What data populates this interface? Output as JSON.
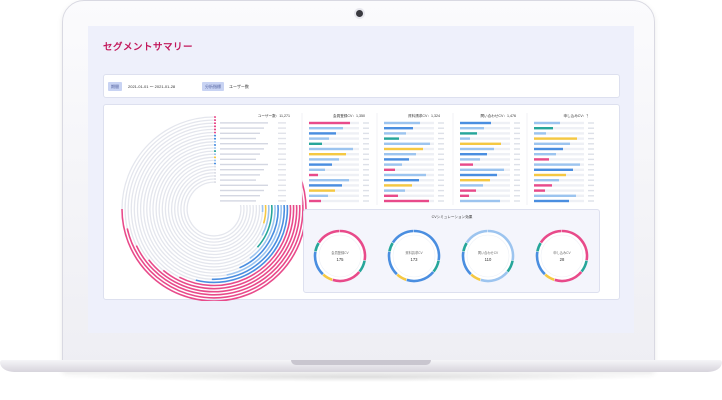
{
  "page": {
    "title": "セグメントサマリー"
  },
  "filters": {
    "period_chip": "期間",
    "date_range": "2021-01-01 〜 2021-01-28",
    "metric_chip": "分析指標",
    "metric_value": "ユーザー数"
  },
  "columns": [
    {
      "label": "ユーザー数：11,271"
    },
    {
      "label": "会員登録CV：1,350"
    },
    {
      "label": "資料請求CV：1,324"
    },
    {
      "label": "問い合わせCV：1,476"
    },
    {
      "label": "申し込みCV：？"
    }
  ],
  "donut_section": {
    "title": "CVシミュレーション効果",
    "donuts": [
      {
        "label": "会員登録CV",
        "value": "175"
      },
      {
        "label": "資料請求CV",
        "value": "173"
      },
      {
        "label": "問い合わせCV",
        "value": "110"
      },
      {
        "label": "申し込みCV",
        "value": "28"
      }
    ]
  },
  "colors": {
    "accent": "#c2185b",
    "pink": "#e84a8a",
    "blue": "#4a8ee0",
    "light_blue": "#9cc4ef",
    "teal": "#26a69a",
    "yellow": "#f5c842",
    "grey": "#d7d9e0"
  },
  "icons": {
    "camera": "camera-icon"
  }
}
